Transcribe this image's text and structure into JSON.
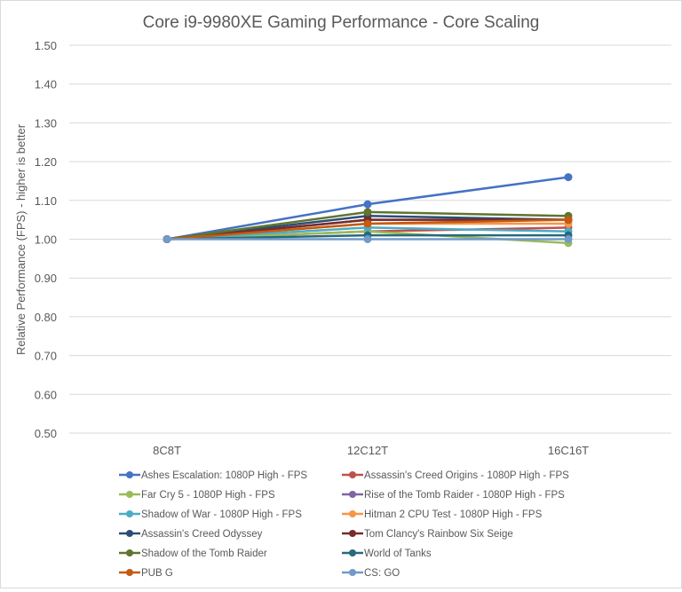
{
  "chart_data": {
    "type": "line",
    "title": "Core i9-9980XE Gaming Performance - Core Scaling",
    "xlabel": "",
    "ylabel": "Relative Performance (FPS) - higher is better",
    "categories": [
      "8C8T",
      "12C12T",
      "16C16T"
    ],
    "ylim": [
      0.5,
      1.5
    ],
    "yticks": [
      "0.50",
      "0.60",
      "0.70",
      "0.80",
      "0.90",
      "1.00",
      "1.10",
      "1.20",
      "1.30",
      "1.40",
      "1.50"
    ],
    "grid": true,
    "legend": "bottom",
    "series": [
      {
        "name": "Ashes Escalation: 1080P High - FPS",
        "color": "#4472c4",
        "values": [
          1.0,
          1.09,
          1.16
        ]
      },
      {
        "name": "Assassin's Creed Origins - 1080P High - FPS",
        "color": "#c0504d",
        "values": [
          1.0,
          1.02,
          1.03
        ]
      },
      {
        "name": "Far Cry 5 - 1080P High - FPS",
        "color": "#9bbb59",
        "values": [
          1.0,
          1.02,
          0.99
        ]
      },
      {
        "name": "Rise of the Tomb Raider - 1080P High - FPS",
        "color": "#8064a2",
        "values": [
          1.0,
          1.05,
          1.05
        ]
      },
      {
        "name": "Shadow of War - 1080P High - FPS",
        "color": "#4bacc6",
        "values": [
          1.0,
          1.03,
          1.02
        ]
      },
      {
        "name": "Hitman 2  CPU Test - 1080P High - FPS",
        "color": "#f79646",
        "values": [
          1.0,
          1.04,
          1.04
        ]
      },
      {
        "name": "Assassin's Creed Odyssey",
        "color": "#2c4d75",
        "values": [
          1.0,
          1.06,
          1.05
        ]
      },
      {
        "name": "Tom Clancy's Rainbow Six Seige",
        "color": "#772c2a",
        "values": [
          1.0,
          1.05,
          1.05
        ]
      },
      {
        "name": "Shadow of the Tomb Raider",
        "color": "#5f7530",
        "values": [
          1.0,
          1.07,
          1.06
        ]
      },
      {
        "name": "World of Tanks",
        "color": "#276a7c",
        "values": [
          1.0,
          1.01,
          1.01
        ]
      },
      {
        "name": "PUB G",
        "color": "#c55a11",
        "values": [
          1.0,
          1.04,
          1.05
        ]
      },
      {
        "name": "CS: GO",
        "color": "#729aca",
        "values": [
          1.0,
          1.0,
          1.0
        ]
      }
    ]
  }
}
